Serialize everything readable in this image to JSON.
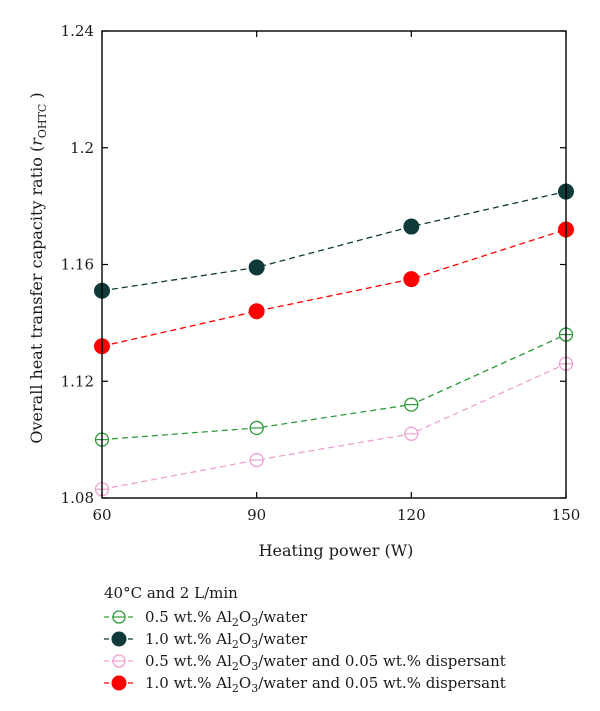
{
  "chart_data": {
    "type": "line",
    "xlabel": "Heating power (W)",
    "ylabel_main": "Overall heat transfer capacity ratio (",
    "ylabel_var": "r",
    "ylabel_sub": "OHTC",
    "ylabel_close": " )",
    "x": [
      60,
      90,
      120,
      150
    ],
    "xlim": [
      60,
      150
    ],
    "ylim": [
      1.08,
      1.24
    ],
    "xticks": [
      "60",
      "90",
      "120",
      "150"
    ],
    "yticks": [
      "1.08",
      "1.12",
      "1.16",
      "1.2",
      "1.24"
    ],
    "yticks_values": [
      1.08,
      1.12,
      1.16,
      1.2,
      1.24
    ],
    "legend_title": "40°C and 2 L/min",
    "series": [
      {
        "label_pre": "0.5 wt.% Al",
        "label_sub1": "2",
        "label_mid": "O",
        "label_sub2": "3",
        "label_post": "/water",
        "values": [
          1.1,
          1.104,
          1.112,
          1.136
        ],
        "color": "#2e9a3a",
        "filled": false
      },
      {
        "label_pre": "1.0 wt.% Al",
        "label_sub1": "2",
        "label_mid": "O",
        "label_sub2": "3",
        "label_post": "/water",
        "values": [
          1.151,
          1.159,
          1.173,
          1.185
        ],
        "color": "#0e3a3a",
        "filled": true
      },
      {
        "label_pre": "0.5 wt.% Al",
        "label_sub1": "2",
        "label_mid": "O",
        "label_sub2": "3",
        "label_post": "/water and 0.05 wt.% dispersant",
        "values": [
          1.083,
          1.093,
          1.102,
          1.126
        ],
        "color": "#ee9fd2",
        "filled": false
      },
      {
        "label_pre": "1.0 wt.% Al",
        "label_sub1": "2",
        "label_mid": "O",
        "label_sub2": "3",
        "label_post": "/water and 0.05 wt.% dispersant",
        "values": [
          1.132,
          1.144,
          1.155,
          1.172
        ],
        "color": "#ff0000",
        "filled": true
      }
    ]
  }
}
